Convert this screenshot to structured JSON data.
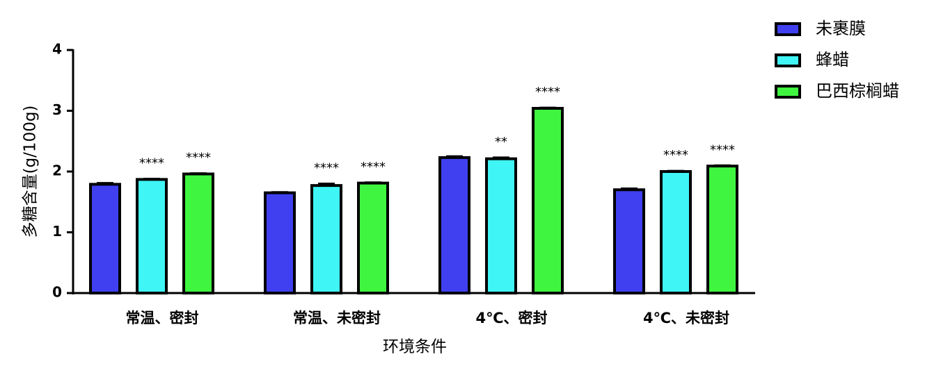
{
  "chart_data": {
    "type": "bar",
    "y_label": "多糖含量(g/100g)",
    "x_label": "环境条件",
    "categories": [
      "常温、密封",
      "常温、未密封",
      "4℃、密封",
      "4℃、未密封"
    ],
    "series": [
      {
        "name": "未裹膜",
        "color": "#4040f0",
        "values": [
          1.79,
          1.65,
          2.23,
          1.7
        ],
        "errors": [
          0.02,
          0.01,
          0.02,
          0.02
        ],
        "annotations": [
          null,
          null,
          null,
          null
        ]
      },
      {
        "name": "蜂蜡",
        "color": "#40f5f5",
        "values": [
          1.87,
          1.77,
          2.21,
          2.0
        ],
        "errors": [
          0.01,
          0.03,
          0.02,
          0.01
        ],
        "annotations": [
          "****",
          "****",
          "**",
          "****"
        ]
      },
      {
        "name": "巴西棕榈蜡",
        "color": "#40f540",
        "values": [
          1.96,
          1.81,
          3.04,
          2.09
        ],
        "errors": [
          0.01,
          0.01,
          0.01,
          0.01
        ],
        "annotations": [
          "****",
          "****",
          "****",
          "****"
        ]
      }
    ],
    "ylim": [
      0,
      4
    ],
    "yticks": [
      0,
      1,
      2,
      3,
      4
    ],
    "legend": "top-right"
  }
}
